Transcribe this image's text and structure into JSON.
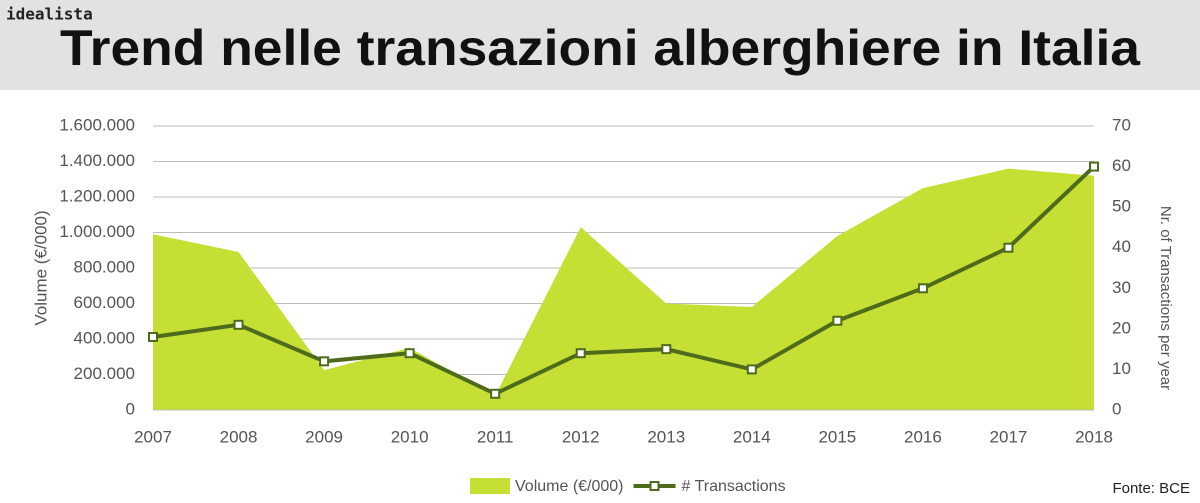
{
  "brand": "idealista",
  "source": "Fonte: BCE",
  "chart_data": {
    "type": "area-line",
    "title": "Trend nelle transazioni alberghiere in Italia",
    "x": [
      2007,
      2008,
      2009,
      2010,
      2011,
      2012,
      2013,
      2014,
      2015,
      2016,
      2017,
      2018
    ],
    "xlim": [
      2007,
      2018
    ],
    "y_label": "Volume (€/000)",
    "y2_label": "Nr. of Transactions per year",
    "ylim": [
      0,
      1600000
    ],
    "yticks": [
      0,
      {
        "value": 200000,
        "label": "200.000"
      },
      {
        "value": 400000,
        "label": "400.000"
      },
      {
        "value": 600000,
        "label": "600.000"
      },
      {
        "value": 800000,
        "label": "800.000"
      },
      {
        "value": 1000000,
        "label": "1.000.000"
      },
      {
        "value": 1200000,
        "label": "1.200.000"
      },
      {
        "value": 1400000,
        "label": "1.400.000"
      },
      {
        "value": 1600000,
        "label": "1.600.000"
      }
    ],
    "y2lim": [
      0,
      70
    ],
    "y2ticks": [
      0,
      10,
      20,
      30,
      40,
      50,
      60,
      70
    ],
    "grid": true,
    "series": [
      {
        "name": "Volume (€/000)",
        "color": "#c6df34",
        "kind": "area",
        "values": [
          990000,
          890000,
          225000,
          350000,
          80000,
          1030000,
          600000,
          580000,
          980000,
          1250000,
          1360000,
          1320000
        ]
      },
      {
        "name": "# Transactions",
        "color": "#4e6b1c",
        "kind": "line",
        "axis": "y2",
        "values": [
          18,
          21,
          12,
          14,
          4,
          14,
          15,
          10,
          22,
          30,
          40,
          60
        ]
      }
    ]
  }
}
